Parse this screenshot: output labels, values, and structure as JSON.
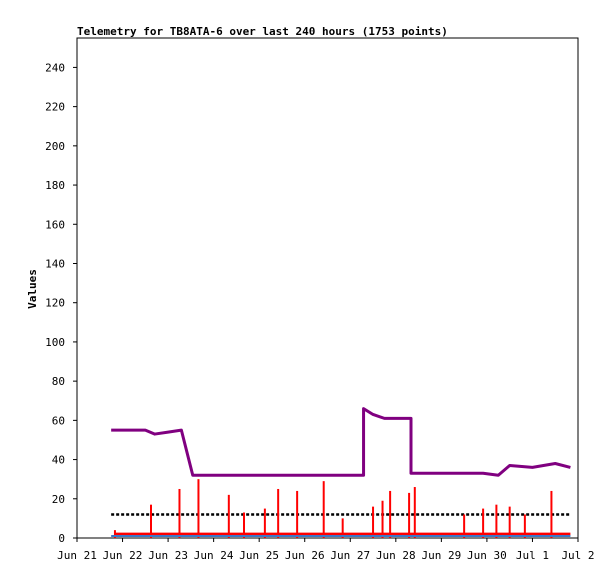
{
  "chart_data": {
    "type": "line",
    "title": "Telemetry for TB8ATA-6 over last 240 hours (1753 points)",
    "xlabel": "",
    "ylabel": "Values",
    "ylim": [
      0,
      255
    ],
    "xlim": [
      "2018-06-21 00:00",
      "2018-07-02 00:00"
    ],
    "x_tick_labels": [
      "Jun 21",
      "Jun 22",
      "Jun 23",
      "Jun 24",
      "Jun 25",
      "Jun 26",
      "Jun 27",
      "Jun 28",
      "Jun 29",
      "Jun 30",
      "Jul 1",
      "Jul 2"
    ],
    "y_tick_values": [
      0,
      20,
      40,
      60,
      80,
      100,
      120,
      140,
      160,
      180,
      200,
      220,
      240
    ],
    "grid": false,
    "legend": "none",
    "series": [
      {
        "color": "#800080",
        "style": "line",
        "x": [
          "2018-06-21 18:00",
          "2018-06-22 12:00",
          "2018-06-22 17:00",
          "2018-06-23 00:00",
          "2018-06-23 07:00",
          "2018-06-23 13:00",
          "2018-06-24 00:00",
          "2018-06-24 12:00",
          "2018-06-25 00:00",
          "2018-06-26 00:00",
          "2018-06-27 00:00",
          "2018-06-27 06:00",
          "2018-06-27 07:00",
          "2018-06-27 12:00",
          "2018-06-27 18:00",
          "2018-06-28 06:00",
          "2018-06-28 08:00",
          "2018-06-29 00:00",
          "2018-06-29 22:00",
          "2018-06-30 06:00",
          "2018-06-30 12:00",
          "2018-07-01 00:00",
          "2018-07-01 12:00",
          "2018-07-01 20:00"
        ],
        "y": [
          55,
          55,
          53,
          54,
          55,
          32,
          32,
          32,
          32,
          32,
          32,
          32,
          66,
          63,
          61,
          61,
          33,
          33,
          33,
          32,
          37,
          36,
          38,
          36
        ]
      },
      {
        "color": "#000000",
        "style": "dotted",
        "x": [
          "2018-06-21 18:00",
          "2018-07-01 20:00"
        ],
        "y": [
          12,
          12
        ]
      },
      {
        "color": "#ff0000",
        "style": "spikes",
        "x": [
          "2018-06-21 20:00",
          "2018-06-22 15:00",
          "2018-06-23 06:00",
          "2018-06-23 16:00",
          "2018-06-24 08:00",
          "2018-06-24 16:00",
          "2018-06-25 03:00",
          "2018-06-25 10:00",
          "2018-06-25 20:00",
          "2018-06-26 10:00",
          "2018-06-26 20:00",
          "2018-06-27 12:00",
          "2018-06-27 17:00",
          "2018-06-27 21:00",
          "2018-06-28 07:00",
          "2018-06-28 10:00",
          "2018-06-29 12:00",
          "2018-06-29 22:00",
          "2018-06-30 05:00",
          "2018-06-30 12:00",
          "2018-06-30 20:00",
          "2018-07-01 10:00"
        ],
        "y": [
          4,
          17,
          25,
          30,
          22,
          13,
          15,
          25,
          24,
          29,
          10,
          16,
          19,
          24,
          23,
          26,
          12,
          15,
          17,
          16,
          12,
          24
        ]
      },
      {
        "color": "#3c78c8",
        "style": "line",
        "x": [
          "2018-06-21 18:00",
          "2018-07-01 20:00"
        ],
        "y": [
          1,
          1
        ]
      }
    ]
  }
}
